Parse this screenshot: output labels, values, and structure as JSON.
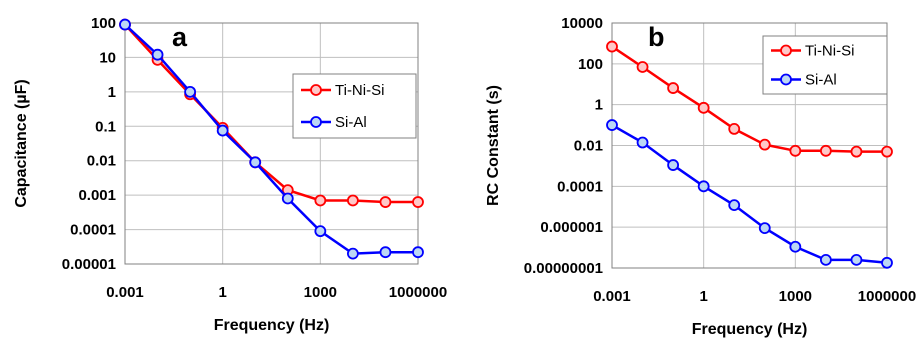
{
  "chart_data": [
    {
      "type": "line",
      "panel_label": "a",
      "xlabel": "Frequency (Hz)",
      "ylabel": "Capacitance (µF)",
      "x_scale": "log",
      "y_scale": "log",
      "xlim": [
        0.001,
        1000000
      ],
      "ylim": [
        1e-05,
        100
      ],
      "x_ticks": [
        "0.001",
        "1",
        "1000",
        "1000000"
      ],
      "y_ticks": [
        "100",
        "10",
        "1",
        "0.1",
        "0.01",
        "0.001",
        "0.0001",
        "0.00001"
      ],
      "grid": true,
      "legend_position": "right",
      "x": [
        0.001,
        0.01,
        0.1,
        1,
        10,
        100,
        1000,
        10000,
        100000,
        1000000
      ],
      "series": [
        {
          "name": "Ti-Ni-Si",
          "color": "#ff0000",
          "marker_fill": "#ffc8c8",
          "values": [
            90,
            8.5,
            0.85,
            0.09,
            0.009,
            0.0014,
            0.0007,
            0.0007,
            0.00063,
            0.00063
          ]
        },
        {
          "name": "Si-Al",
          "color": "#0000ff",
          "marker_fill": "#bcd7f5",
          "values": [
            90,
            12,
            1.0,
            0.075,
            0.009,
            0.0008,
            9e-05,
            2e-05,
            2.2e-05,
            2.2e-05
          ]
        }
      ]
    },
    {
      "type": "line",
      "panel_label": "b",
      "xlabel": "Frequency (Hz)",
      "ylabel": "RC Constant (s)",
      "x_scale": "log",
      "y_scale": "log",
      "xlim": [
        0.001,
        1000000
      ],
      "ylim": [
        1e-08,
        10000
      ],
      "x_ticks": [
        "0.001",
        "1",
        "1000",
        "1000000"
      ],
      "y_ticks": [
        "10000",
        "100",
        "1",
        "0.01",
        "0.0001",
        "0.000001",
        "0.00000001"
      ],
      "grid": true,
      "legend_position": "top-right",
      "x": [
        0.001,
        0.01,
        0.1,
        1,
        10,
        100,
        1000,
        10000,
        100000,
        1000000
      ],
      "series": [
        {
          "name": "Ti-Ni-Si",
          "color": "#ff0000",
          "marker_fill": "#ffc8c8",
          "values": [
            700,
            70,
            6.5,
            0.7,
            0.065,
            0.011,
            0.0055,
            0.0055,
            0.005,
            0.005
          ]
        },
        {
          "name": "Si-Al",
          "color": "#0000ff",
          "marker_fill": "#bcd7f5",
          "values": [
            0.1,
            0.014,
            0.0011,
            0.0001,
            1.2e-05,
            9e-07,
            1.1e-07,
            2.5e-08,
            2.5e-08,
            1.8e-08
          ]
        }
      ]
    }
  ]
}
